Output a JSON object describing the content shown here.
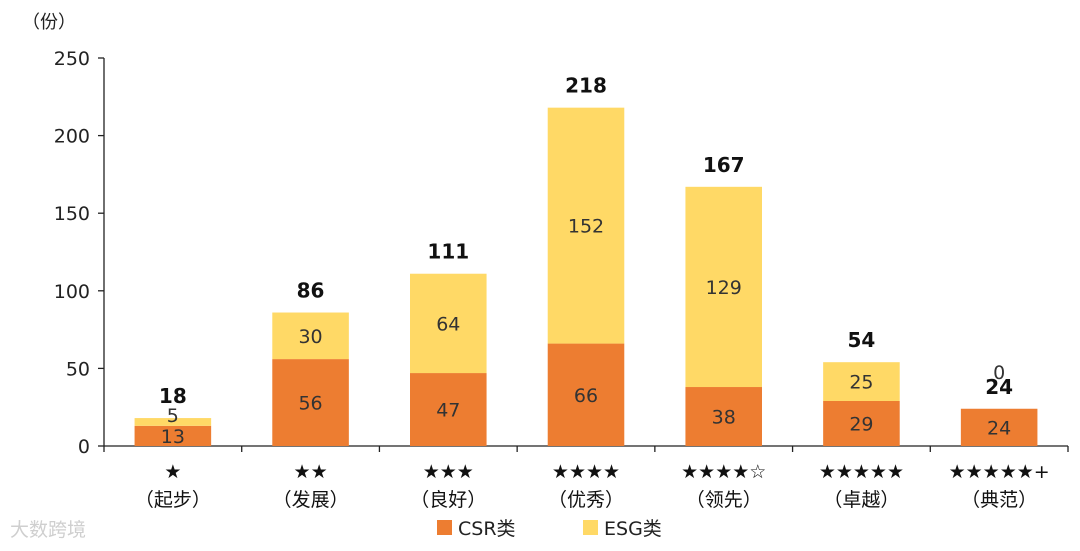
{
  "chart_data": {
    "type": "bar",
    "stacked": true,
    "unit_label": "（份）",
    "categories": [
      {
        "stars": "★",
        "name": "（起步）"
      },
      {
        "stars": "★★",
        "name": "（发展）"
      },
      {
        "stars": "★★★",
        "name": "（良好）"
      },
      {
        "stars": "★★★★",
        "name": "（优秀）"
      },
      {
        "stars": "★★★★☆",
        "name": "（领先）"
      },
      {
        "stars": "★★★★★",
        "name": "（卓越）"
      },
      {
        "stars": "★★★★★+",
        "name": "（典范）"
      }
    ],
    "series": [
      {
        "name": "CSR类",
        "color": "#ED7D31",
        "values": [
          13,
          56,
          47,
          66,
          38,
          29,
          24
        ]
      },
      {
        "name": "ESG类",
        "color": "#FFD966",
        "values": [
          5,
          30,
          64,
          152,
          129,
          25,
          0
        ]
      }
    ],
    "totals": [
      18,
      86,
      111,
      218,
      167,
      54,
      24
    ],
    "yticks": [
      0,
      50,
      100,
      150,
      200,
      250
    ],
    "ylim": [
      0,
      250
    ],
    "grid": false,
    "legend_position": "bottom"
  },
  "watermark": "大数跨境"
}
